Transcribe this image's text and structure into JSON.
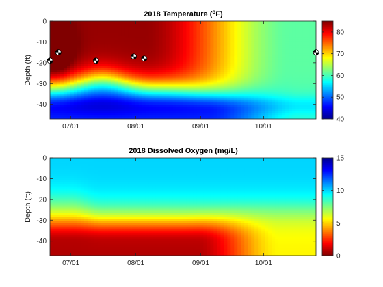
{
  "chart_data": [
    {
      "type": "heatmap",
      "title": "2018 Temperature (",
      "title_sup": "o",
      "title_unit": "F)",
      "ylabel": "Depth (ft)",
      "xlabel": "",
      "x_ticks": [
        "07/01",
        "08/01",
        "09/01",
        "10/01"
      ],
      "x_tick_dates": [
        "2018-07-01",
        "2018-08-01",
        "2018-09-01",
        "2018-10-01"
      ],
      "xlim": [
        "2018-06-21",
        "2018-10-26"
      ],
      "y_ticks": [
        0,
        -10,
        -20,
        -30,
        -40
      ],
      "ylim": [
        -47,
        0
      ],
      "colorbar": {
        "ticks": [
          40,
          50,
          60,
          70,
          80
        ],
        "range": [
          40,
          85
        ],
        "colormap": "jet"
      },
      "grid": false,
      "markers": [
        {
          "date": "2018-06-21",
          "depth": -19
        },
        {
          "date": "2018-06-25",
          "depth": -15
        },
        {
          "date": "2018-07-13",
          "depth": -19
        },
        {
          "date": "2018-07-31",
          "depth": -17
        },
        {
          "date": "2018-08-05",
          "depth": -18
        },
        {
          "date": "2018-10-26",
          "depth": -15
        }
      ]
    },
    {
      "type": "heatmap",
      "title": "2018 Dissolved Oxygen (mg/L)",
      "ylabel": "Depth (ft)",
      "xlabel": "",
      "x_ticks": [
        "07/01",
        "08/01",
        "09/01",
        "10/01"
      ],
      "x_tick_dates": [
        "2018-07-01",
        "2018-08-01",
        "2018-09-01",
        "2018-10-01"
      ],
      "xlim": [
        "2018-06-21",
        "2018-10-26"
      ],
      "y_ticks": [
        0,
        -10,
        -20,
        -30,
        -40
      ],
      "ylim": [
        -47,
        0
      ],
      "colorbar": {
        "ticks": [
          0,
          5,
          10,
          15
        ],
        "range": [
          0,
          15
        ],
        "colormap": "jet-reversed"
      },
      "grid": false
    }
  ]
}
